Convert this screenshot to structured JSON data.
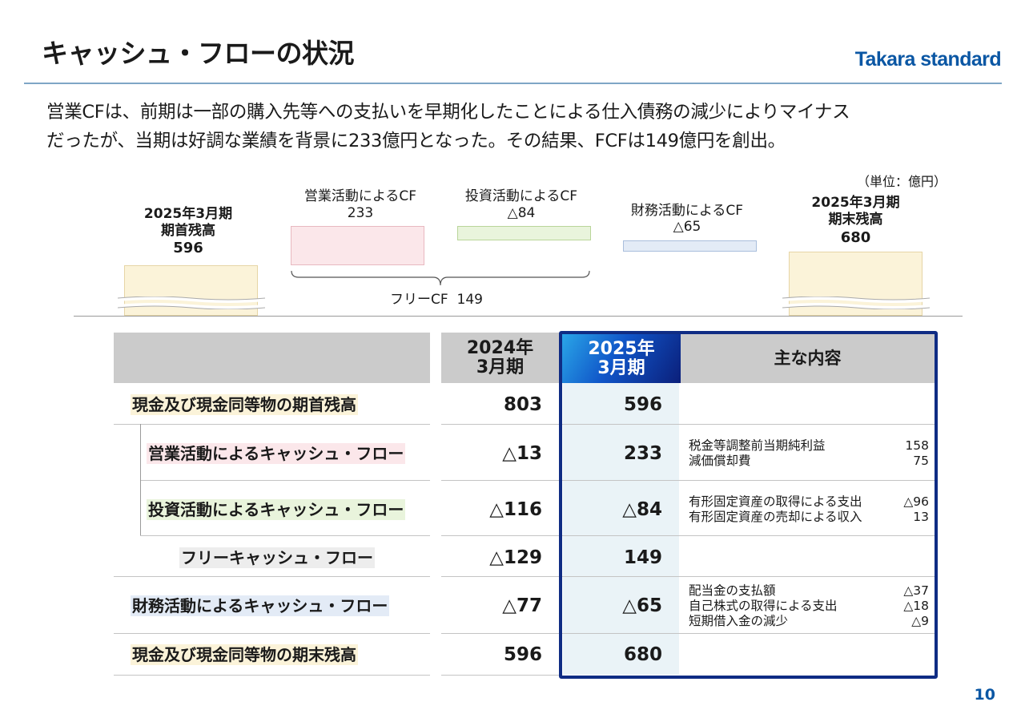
{
  "header": {
    "title": "キャッシュ・フローの状況",
    "logo": "Takara standard",
    "accent_color": "#0b57a4"
  },
  "lead": {
    "line1": "営業CFは、前期は一部の購入先等への支払いを早期化したことによる仕入債務の減少によりマイナス",
    "line2": "だったが、当期は好調な業績を背景に233億円となった。その結果、FCFは149億円を創出。"
  },
  "unit_label": "（単位：億円）",
  "waterfall": {
    "opening": {
      "title": "2025年3月期\n期首残高",
      "value": "596"
    },
    "operating": {
      "label": "営業活動によるCF",
      "value": "233"
    },
    "investing": {
      "label": "投資活動によるCF",
      "value": "△84"
    },
    "financing": {
      "label": "財務活動によるCF",
      "value": "△65"
    },
    "closing": {
      "title": "2025年3月期\n期末残高",
      "value": "680"
    },
    "free_cf": {
      "label": "フリーCF",
      "value": "149"
    }
  },
  "table": {
    "col_prev": "2024年\n3月期",
    "col_curr": "2025年\n3月期",
    "col_notes": "主な内容",
    "rows": [
      {
        "label": "現金及び現金同等物の期首残高",
        "prev": "803",
        "curr": "596",
        "notes": []
      },
      {
        "label": "営業活動によるキャッシュ・フロー",
        "prev": "△13",
        "curr": "233",
        "notes": [
          {
            "item": "税金等調整前当期純利益",
            "value": "158"
          },
          {
            "item": "減価償却費",
            "value": "75"
          }
        ]
      },
      {
        "label": "投資活動によるキャッシュ・フロー",
        "prev": "△116",
        "curr": "△84",
        "notes": [
          {
            "item": "有形固定資産の取得による支出",
            "value": "△96"
          },
          {
            "item": "有形固定資産の売却による収入",
            "value": "13"
          }
        ]
      },
      {
        "label": "フリーキャッシュ・フロー",
        "prev": "△129",
        "curr": "149",
        "notes": []
      },
      {
        "label": "財務活動によるキャッシュ・フロー",
        "prev": "△77",
        "curr": "△65",
        "notes": [
          {
            "item": "配当金の支払額",
            "value": "△37"
          },
          {
            "item": "自己株式の取得による支出",
            "value": "△18"
          },
          {
            "item": "短期借入金の減少",
            "value": "△9"
          }
        ]
      },
      {
        "label": "現金及び現金同等物の期末残高",
        "prev": "596",
        "curr": "680",
        "notes": []
      }
    ]
  },
  "page_number": "10"
}
